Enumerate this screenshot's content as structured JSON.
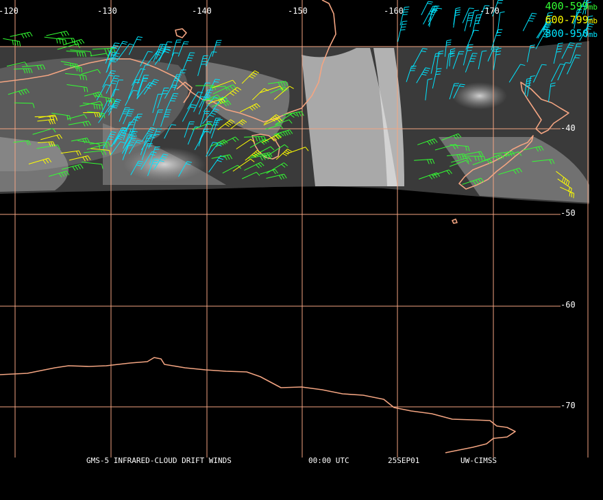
{
  "map": {
    "longitude_labels": [
      "-120",
      "-130",
      "-140",
      "-150",
      "-160",
      "-170"
    ],
    "latitude_labels": [
      "-40",
      "-50",
      "-60",
      "-70"
    ],
    "colors": {
      "grid": "#f4a582",
      "coast": "#f4a582",
      "cloud": "#d9d9d9",
      "level_400_599": "#33ff33",
      "level_600_799": "#ffff00",
      "level_800_950": "#00e5ff"
    }
  },
  "legend": {
    "items": [
      {
        "range": "400-599",
        "unit": "mb",
        "color": "#33ff33"
      },
      {
        "range": "600-799",
        "unit": "mb",
        "color": "#ffff00"
      },
      {
        "range": "800-950",
        "unit": "mb",
        "color": "#00e5ff"
      }
    ]
  },
  "footer": {
    "product": "GMS-5 INFRARED-CLOUD DRIFT WINDS",
    "time": "00:00 UTC",
    "date": "25SEP01",
    "source": "UW-CIMSS"
  }
}
